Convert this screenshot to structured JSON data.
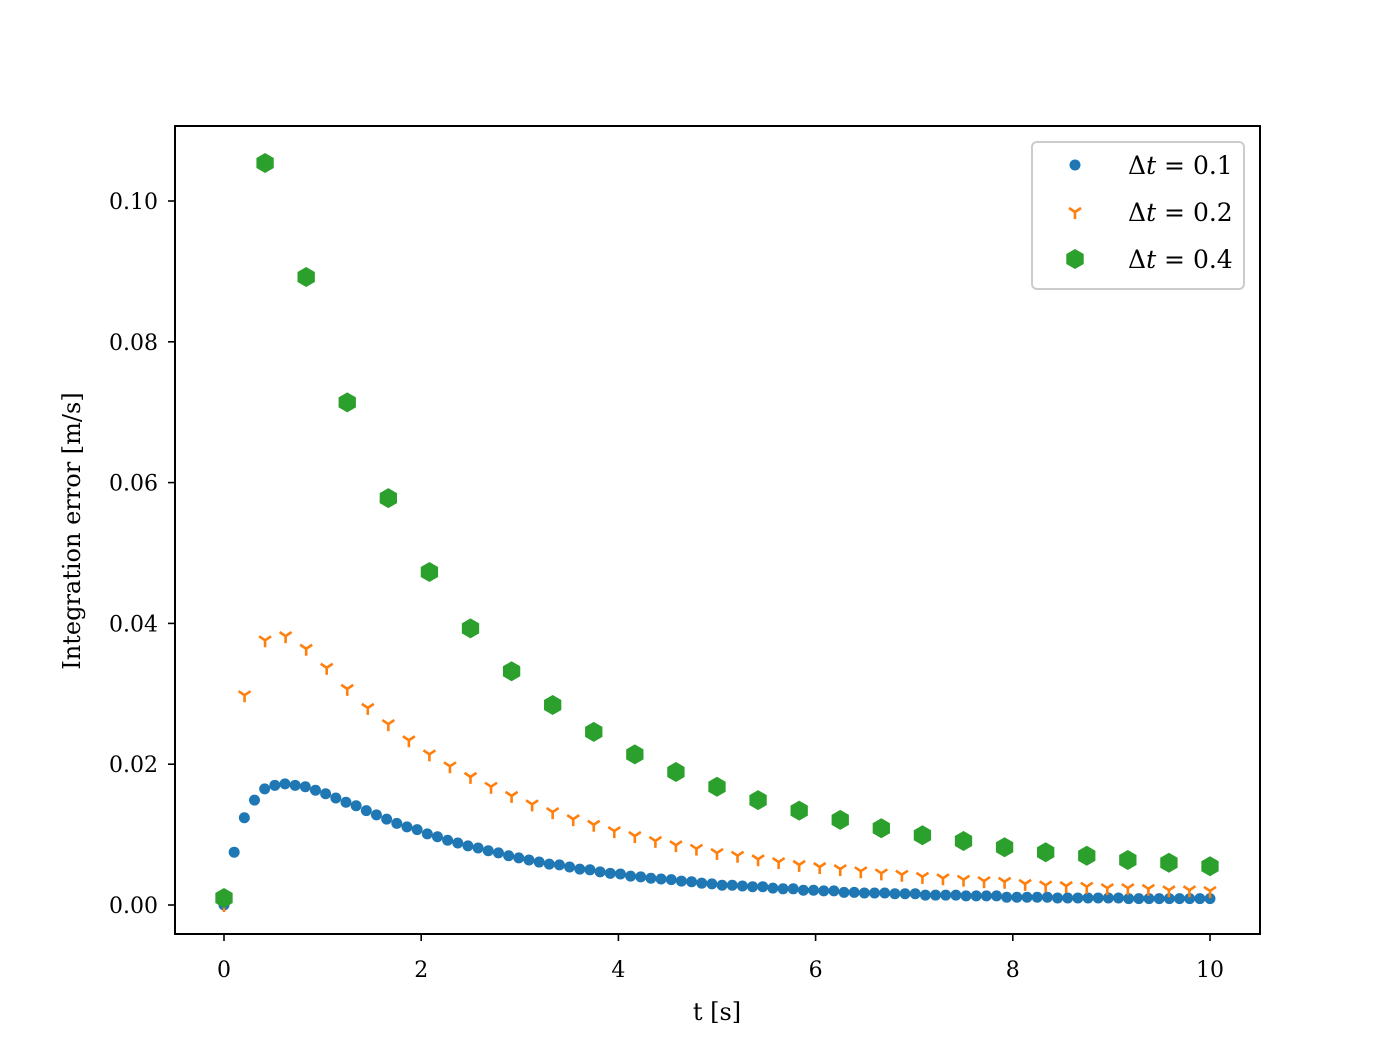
{
  "chart_data": {
    "type": "scatter",
    "title": "",
    "xlabel": "t [s]",
    "ylabel": "Integration error [m/s]",
    "xlim": [
      -0.5,
      10.5
    ],
    "ylim": [
      -0.0043,
      0.1107
    ],
    "grid": false,
    "legend_position": "upper right",
    "x_ticks": [
      0,
      2,
      4,
      6,
      8,
      10
    ],
    "x_tick_labels": [
      "0",
      "2",
      "4",
      "6",
      "8",
      "10"
    ],
    "y_ticks": [
      0.0,
      0.02,
      0.04,
      0.06,
      0.08,
      0.1
    ],
    "y_tick_labels": [
      "0.00",
      "0.02",
      "0.04",
      "0.06",
      "0.08",
      "0.10"
    ],
    "series": [
      {
        "name": "Δt = 0.1",
        "legend_label": "Δt = 0.1",
        "marker": "circle",
        "color": "#1f77b4",
        "t_start": 0,
        "t_end": 10,
        "values": [
          0.0,
          0.0075,
          0.0124,
          0.0149,
          0.0165,
          0.017,
          0.0172,
          0.017,
          0.0168,
          0.0163,
          0.0158,
          0.0152,
          0.0146,
          0.0141,
          0.0134,
          0.0128,
          0.0122,
          0.0116,
          0.0111,
          0.0107,
          0.0101,
          0.0097,
          0.0092,
          0.0088,
          0.0084,
          0.0081,
          0.0077,
          0.0074,
          0.007,
          0.0067,
          0.0064,
          0.0061,
          0.0058,
          0.0057,
          0.0054,
          0.0051,
          0.005,
          0.0047,
          0.0045,
          0.0044,
          0.0041,
          0.004,
          0.0038,
          0.0037,
          0.0036,
          0.0034,
          0.0033,
          0.0031,
          0.003,
          0.0028,
          0.0028,
          0.0027,
          0.0026,
          0.0026,
          0.0024,
          0.0023,
          0.0023,
          0.0021,
          0.0021,
          0.002,
          0.002,
          0.0018,
          0.0018,
          0.0017,
          0.0017,
          0.0017,
          0.0016,
          0.0016,
          0.0016,
          0.0014,
          0.0014,
          0.0014,
          0.0014,
          0.0013,
          0.0013,
          0.0013,
          0.0013,
          0.0011,
          0.0011,
          0.0011,
          0.0011,
          0.0011,
          0.001,
          0.001,
          0.001,
          0.001,
          0.001,
          0.001,
          0.001,
          0.0009,
          0.0009,
          0.0009,
          0.0009,
          0.0009,
          0.0009,
          0.0009,
          0.0009,
          0.0009
        ]
      },
      {
        "name": "Δt = 0.2",
        "legend_label": "Δt = 0.2",
        "marker": "tri_down",
        "color": "#ff7f0e",
        "t_start": 0,
        "t_end": 10,
        "values": [
          0.0,
          0.0298,
          0.0376,
          0.0382,
          0.0364,
          0.0337,
          0.0307,
          0.028,
          0.0257,
          0.0234,
          0.0214,
          0.0197,
          0.0182,
          0.0168,
          0.0155,
          0.0143,
          0.0132,
          0.0122,
          0.0114,
          0.0105,
          0.0098,
          0.0091,
          0.0085,
          0.008,
          0.0074,
          0.007,
          0.0065,
          0.0061,
          0.0057,
          0.0054,
          0.0051,
          0.0048,
          0.0045,
          0.0043,
          0.004,
          0.0038,
          0.0036,
          0.0034,
          0.0033,
          0.003,
          0.0028,
          0.0027,
          0.0026,
          0.0024,
          0.0024,
          0.0023,
          0.0021,
          0.0021,
          0.002
        ]
      },
      {
        "name": "Δt = 0.4",
        "legend_label": "Δt = 0.4",
        "marker": "hexagon",
        "color": "#2ca02c",
        "t_start": 0,
        "t_end": 10,
        "values": [
          0.001,
          0.1054,
          0.0892,
          0.0714,
          0.0578,
          0.0473,
          0.0393,
          0.0332,
          0.0284,
          0.0246,
          0.0214,
          0.0189,
          0.0168,
          0.0149,
          0.0134,
          0.0121,
          0.0109,
          0.0099,
          0.0091,
          0.0082,
          0.0075,
          0.007,
          0.0064,
          0.006,
          0.0055
        ]
      }
    ]
  },
  "legend": {
    "items": [
      {
        "prefix": "Δ",
        "var": "t",
        "suffix": " = 0.1"
      },
      {
        "prefix": "Δ",
        "var": "t",
        "suffix": " = 0.2"
      },
      {
        "prefix": "Δ",
        "var": "t",
        "suffix": " = 0.4"
      }
    ]
  }
}
